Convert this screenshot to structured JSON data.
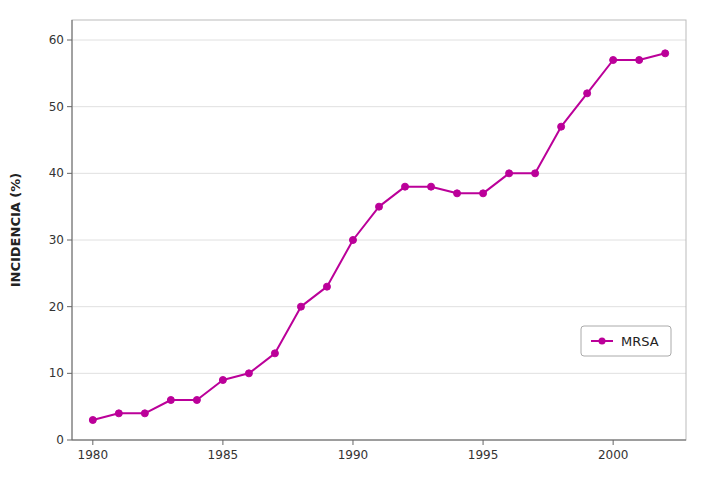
{
  "chart_data": {
    "type": "line",
    "ylabel": "INCIDENCIA (%)",
    "x": [
      1980,
      1981,
      1982,
      1983,
      1984,
      1985,
      1986,
      1987,
      1988,
      1989,
      1990,
      1991,
      1992,
      1993,
      1994,
      1995,
      1996,
      1997,
      1998,
      1999,
      2000,
      2001,
      2002
    ],
    "series": [
      {
        "name": "MRSA",
        "color": "#bb0099",
        "marker": "circle",
        "values": [
          3,
          4,
          4,
          6,
          6,
          9,
          10,
          13,
          20,
          23,
          30,
          35,
          38,
          38,
          37,
          37,
          40,
          40,
          47,
          52,
          57,
          57,
          58
        ]
      }
    ],
    "xlim": [
      1979.2,
      2002.8
    ],
    "ylim": [
      0,
      63
    ],
    "xticks": [
      1980,
      1985,
      1990,
      1995,
      2000
    ],
    "yticks": [
      0,
      10,
      20,
      30,
      40,
      50,
      60
    ],
    "grid": true,
    "legend": "lower right"
  }
}
